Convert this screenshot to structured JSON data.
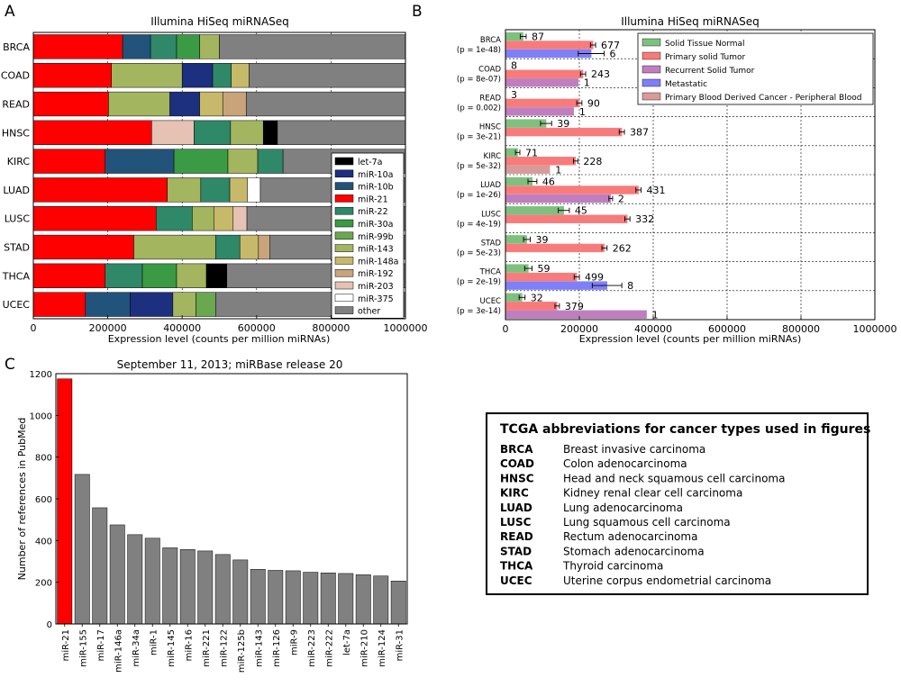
{
  "panels": {
    "a": "A",
    "b": "B",
    "c": "C"
  },
  "colors": {
    "let-7a": "#000000",
    "miR-10a": "#1d2f7f",
    "miR-10b": "#22537a",
    "miR-21": "#ff0000",
    "miR-22": "#2f8868",
    "miR-30a": "#3b9a44",
    "miR-99b": "#6aa84f",
    "miR-143": "#a3b55e",
    "miR-148a": "#c6b96a",
    "miR-192": "#c9a47a",
    "miR-203": "#e6c2b4",
    "miR-375": "#ffffff",
    "other": "#808080",
    "Solid Tissue Normal": "#7fc07f",
    "Primary solid Tumor": "#f77b7b",
    "Recurrent Solid Tumor": "#bf7fbf",
    "Metastatic": "#7f7ff7",
    "Primary Blood Derived Cancer - Peripheral Blood": "#d99a9a",
    "gray_bar": "#808080",
    "red_bar": "#ff0000"
  },
  "chart_data": [
    {
      "panel": "A",
      "type": "bar",
      "orientation": "horizontal",
      "stacked": true,
      "title": "Illumina HiSeq miRNASeq",
      "xlabel": "Expression level (counts per million miRNAs)",
      "ylabel": "",
      "xlim": [
        0,
        1000000
      ],
      "xticks": [
        "0",
        "200000",
        "400000",
        "600000",
        "800000",
        "1000000"
      ],
      "grid": true,
      "legend_position": "lower-right",
      "categories": [
        "BRCA",
        "COAD",
        "READ",
        "HNSC",
        "KIRC",
        "LUAD",
        "LUSC",
        "STAD",
        "THCA",
        "UCEC"
      ],
      "legend": [
        "let-7a",
        "miR-10a",
        "miR-10b",
        "miR-21",
        "miR-22",
        "miR-30a",
        "miR-99b",
        "miR-143",
        "miR-148a",
        "miR-192",
        "miR-203",
        "miR-375",
        "other"
      ],
      "stacks": [
        [
          [
            "miR-21",
            240000
          ],
          [
            "miR-10b",
            75000
          ],
          [
            "miR-22",
            70000
          ],
          [
            "miR-30a",
            62000
          ],
          [
            "miR-143",
            53000
          ],
          [
            "other",
            500000
          ]
        ],
        [
          [
            "miR-21",
            210000
          ],
          [
            "miR-143",
            190000
          ],
          [
            "miR-10a",
            82000
          ],
          [
            "miR-22",
            50000
          ],
          [
            "miR-148a",
            48000
          ],
          [
            "other",
            420000
          ]
        ],
        [
          [
            "miR-21",
            202000
          ],
          [
            "miR-143",
            165000
          ],
          [
            "miR-10a",
            80000
          ],
          [
            "miR-148a",
            62000
          ],
          [
            "miR-192",
            63000
          ],
          [
            "other",
            428000
          ]
        ],
        [
          [
            "miR-21",
            318000
          ],
          [
            "miR-203",
            114000
          ],
          [
            "miR-22",
            98000
          ],
          [
            "miR-143",
            88000
          ],
          [
            "let-7a",
            38000
          ],
          [
            "other",
            344000
          ]
        ],
        [
          [
            "miR-21",
            193000
          ],
          [
            "miR-10b",
            185000
          ],
          [
            "miR-30a",
            145000
          ],
          [
            "miR-143",
            80000
          ],
          [
            "miR-22",
            68000
          ],
          [
            "other",
            329000
          ]
        ],
        [
          [
            "miR-21",
            360000
          ],
          [
            "miR-143",
            90000
          ],
          [
            "miR-22",
            78000
          ],
          [
            "miR-148a",
            47000
          ],
          [
            "miR-375",
            35000
          ],
          [
            "other",
            390000
          ]
        ],
        [
          [
            "miR-21",
            330000
          ],
          [
            "miR-22",
            97000
          ],
          [
            "miR-143",
            58000
          ],
          [
            "miR-148a",
            52000
          ],
          [
            "miR-203",
            37000
          ],
          [
            "other",
            426000
          ]
        ],
        [
          [
            "miR-21",
            270000
          ],
          [
            "miR-143",
            220000
          ],
          [
            "miR-22",
            65000
          ],
          [
            "miR-148a",
            50000
          ],
          [
            "miR-192",
            30000
          ],
          [
            "other",
            365000
          ]
        ],
        [
          [
            "miR-21",
            193000
          ],
          [
            "miR-22",
            100000
          ],
          [
            "miR-30a",
            92000
          ],
          [
            "miR-143",
            80000
          ],
          [
            "let-7a",
            55000
          ],
          [
            "other",
            480000
          ]
        ],
        [
          [
            "miR-21",
            140000
          ],
          [
            "miR-10b",
            120000
          ],
          [
            "miR-10a",
            115000
          ],
          [
            "miR-143",
            62000
          ],
          [
            "miR-99b",
            53000
          ],
          [
            "other",
            510000
          ]
        ]
      ]
    },
    {
      "panel": "B",
      "type": "bar",
      "orientation": "horizontal",
      "title": "Illumina HiSeq miRNASeq",
      "xlabel": "Expression level (counts per million miRNAs)",
      "ylabel": "",
      "xlim": [
        0,
        1000000
      ],
      "xticks": [
        "0",
        "200000",
        "400000",
        "600000",
        "800000",
        "1000000"
      ],
      "grid": true,
      "legend_position": "top-right",
      "legend": [
        "Solid Tissue Normal",
        "Primary solid Tumor",
        "Recurrent Solid Tumor",
        "Metastatic",
        "Primary Blood Derived Cancer - Peripheral Blood"
      ],
      "groups": [
        {
          "name": "BRCA",
          "p": "(p = 1e-48)",
          "bars": [
            {
              "series": "Solid Tissue Normal",
              "value": 48000,
              "err": 8000,
              "n": "87"
            },
            {
              "series": "Primary solid Tumor",
              "value": 237000,
              "err": 7000,
              "n": "677"
            },
            {
              "series": "Metastatic",
              "value": 232000,
              "err": 35000,
              "n": "6"
            }
          ]
        },
        {
          "name": "COAD",
          "p": "(p = 8e-07)",
          "bars": [
            {
              "series": "Solid Tissue Normal",
              "value": 0,
              "err": 0,
              "n": "8"
            },
            {
              "series": "Primary solid Tumor",
              "value": 210000,
              "err": 7000,
              "n": "243"
            },
            {
              "series": "Recurrent Solid Tumor",
              "value": 197000,
              "err": 0,
              "n": "1"
            }
          ]
        },
        {
          "name": "READ",
          "p": "(p = 0.002)",
          "bars": [
            {
              "series": "Solid Tissue Normal",
              "value": 0,
              "err": 0,
              "n": "3"
            },
            {
              "series": "Primary solid Tumor",
              "value": 200000,
              "err": 7000,
              "n": "90"
            },
            {
              "series": "Recurrent Solid Tumor",
              "value": 185000,
              "err": 0,
              "n": "1"
            }
          ]
        },
        {
          "name": "HNSC",
          "p": "(p = 3e-21)",
          "bars": [
            {
              "series": "Solid Tissue Normal",
              "value": 110000,
              "err": 15000,
              "n": "39"
            },
            {
              "series": "Primary solid Tumor",
              "value": 315000,
              "err": 7000,
              "n": "387"
            }
          ]
        },
        {
          "name": "KIRC",
          "p": "(p = 5e-32)",
          "bars": [
            {
              "series": "Solid Tissue Normal",
              "value": 33000,
              "err": 6000,
              "n": "71"
            },
            {
              "series": "Primary solid Tumor",
              "value": 190000,
              "err": 6000,
              "n": "228"
            },
            {
              "series": "Primary Blood Derived Cancer - Peripheral Blood",
              "value": 120000,
              "err": 0,
              "n": "1"
            }
          ]
        },
        {
          "name": "LUAD",
          "p": "(p = 1e-26)",
          "bars": [
            {
              "series": "Solid Tissue Normal",
              "value": 73000,
              "err": 12000,
              "n": "46"
            },
            {
              "series": "Primary solid Tumor",
              "value": 360000,
              "err": 7000,
              "n": "431"
            },
            {
              "series": "Recurrent Solid Tumor",
              "value": 285000,
              "err": 5000,
              "n": "2"
            }
          ]
        },
        {
          "name": "LUSC",
          "p": "(p = 4e-19)",
          "bars": [
            {
              "series": "Solid Tissue Normal",
              "value": 158000,
              "err": 15000,
              "n": "45"
            },
            {
              "series": "Primary solid Tumor",
              "value": 330000,
              "err": 7000,
              "n": "332"
            }
          ]
        },
        {
          "name": "STAD",
          "p": "(p = 5e-23)",
          "bars": [
            {
              "series": "Solid Tissue Normal",
              "value": 58000,
              "err": 9000,
              "n": "39"
            },
            {
              "series": "Primary solid Tumor",
              "value": 268000,
              "err": 7000,
              "n": "262"
            }
          ]
        },
        {
          "name": "THCA",
          "p": "(p = 2e-19)",
          "bars": [
            {
              "series": "Solid Tissue Normal",
              "value": 62000,
              "err": 10000,
              "n": "59"
            },
            {
              "series": "Primary solid Tumor",
              "value": 193000,
              "err": 7000,
              "n": "499"
            },
            {
              "series": "Metastatic",
              "value": 275000,
              "err": 40000,
              "n": "8"
            }
          ]
        },
        {
          "name": "UCEC",
          "p": "(p = 3e-14)",
          "bars": [
            {
              "series": "Solid Tissue Normal",
              "value": 45000,
              "err": 8000,
              "n": "32"
            },
            {
              "series": "Primary solid Tumor",
              "value": 140000,
              "err": 6000,
              "n": "379"
            },
            {
              "series": "Recurrent Solid Tumor",
              "value": 382000,
              "err": 0,
              "n": "1"
            }
          ]
        }
      ]
    },
    {
      "panel": "C",
      "type": "bar",
      "title": "September 11, 2013; miRBase release 20",
      "xlabel": "",
      "ylabel": "Number of references in PubMed",
      "ylim": [
        0,
        1200
      ],
      "yticks": [
        "0",
        "200",
        "400",
        "600",
        "800",
        "1000",
        "1200"
      ],
      "grid": false,
      "categories": [
        "miR-21",
        "miR-155",
        "miR-17",
        "miR-146a",
        "miR-34a",
        "miR-1",
        "miR-145",
        "miR-16",
        "miR-221",
        "miR-122",
        "miR-125b",
        "miR-143",
        "miR-126",
        "miR-9",
        "miR-223",
        "miR-222",
        "let-7a",
        "miR-210",
        "miR-124",
        "miR-31"
      ],
      "values": [
        1175,
        717,
        557,
        475,
        428,
        411,
        365,
        357,
        350,
        333,
        307,
        262,
        257,
        255,
        248,
        245,
        242,
        236,
        230,
        206
      ],
      "highlight": "miR-21"
    }
  ],
  "table": {
    "title": "TCGA abbreviations for cancer types used in figures",
    "rows": [
      {
        "abbr": "BRCA",
        "name": "Breast invasive carcinoma"
      },
      {
        "abbr": "COAD",
        "name": "Colon adenocarcinoma"
      },
      {
        "abbr": "HNSC",
        "name": "Head and neck squamous cell carcinoma"
      },
      {
        "abbr": "KIRC",
        "name": "Kidney renal clear cell carcinoma"
      },
      {
        "abbr": "LUAD",
        "name": "Lung adenocarcinoma"
      },
      {
        "abbr": "LUSC",
        "name": "Lung squamous cell carcinoma"
      },
      {
        "abbr": "READ",
        "name": "Rectum adenocarcinoma"
      },
      {
        "abbr": "STAD",
        "name": "Stomach adenocarcinoma"
      },
      {
        "abbr": "THCA",
        "name": "Thyroid carcinoma"
      },
      {
        "abbr": "UCEC",
        "name": "Uterine corpus endometrial carcinoma"
      }
    ]
  }
}
